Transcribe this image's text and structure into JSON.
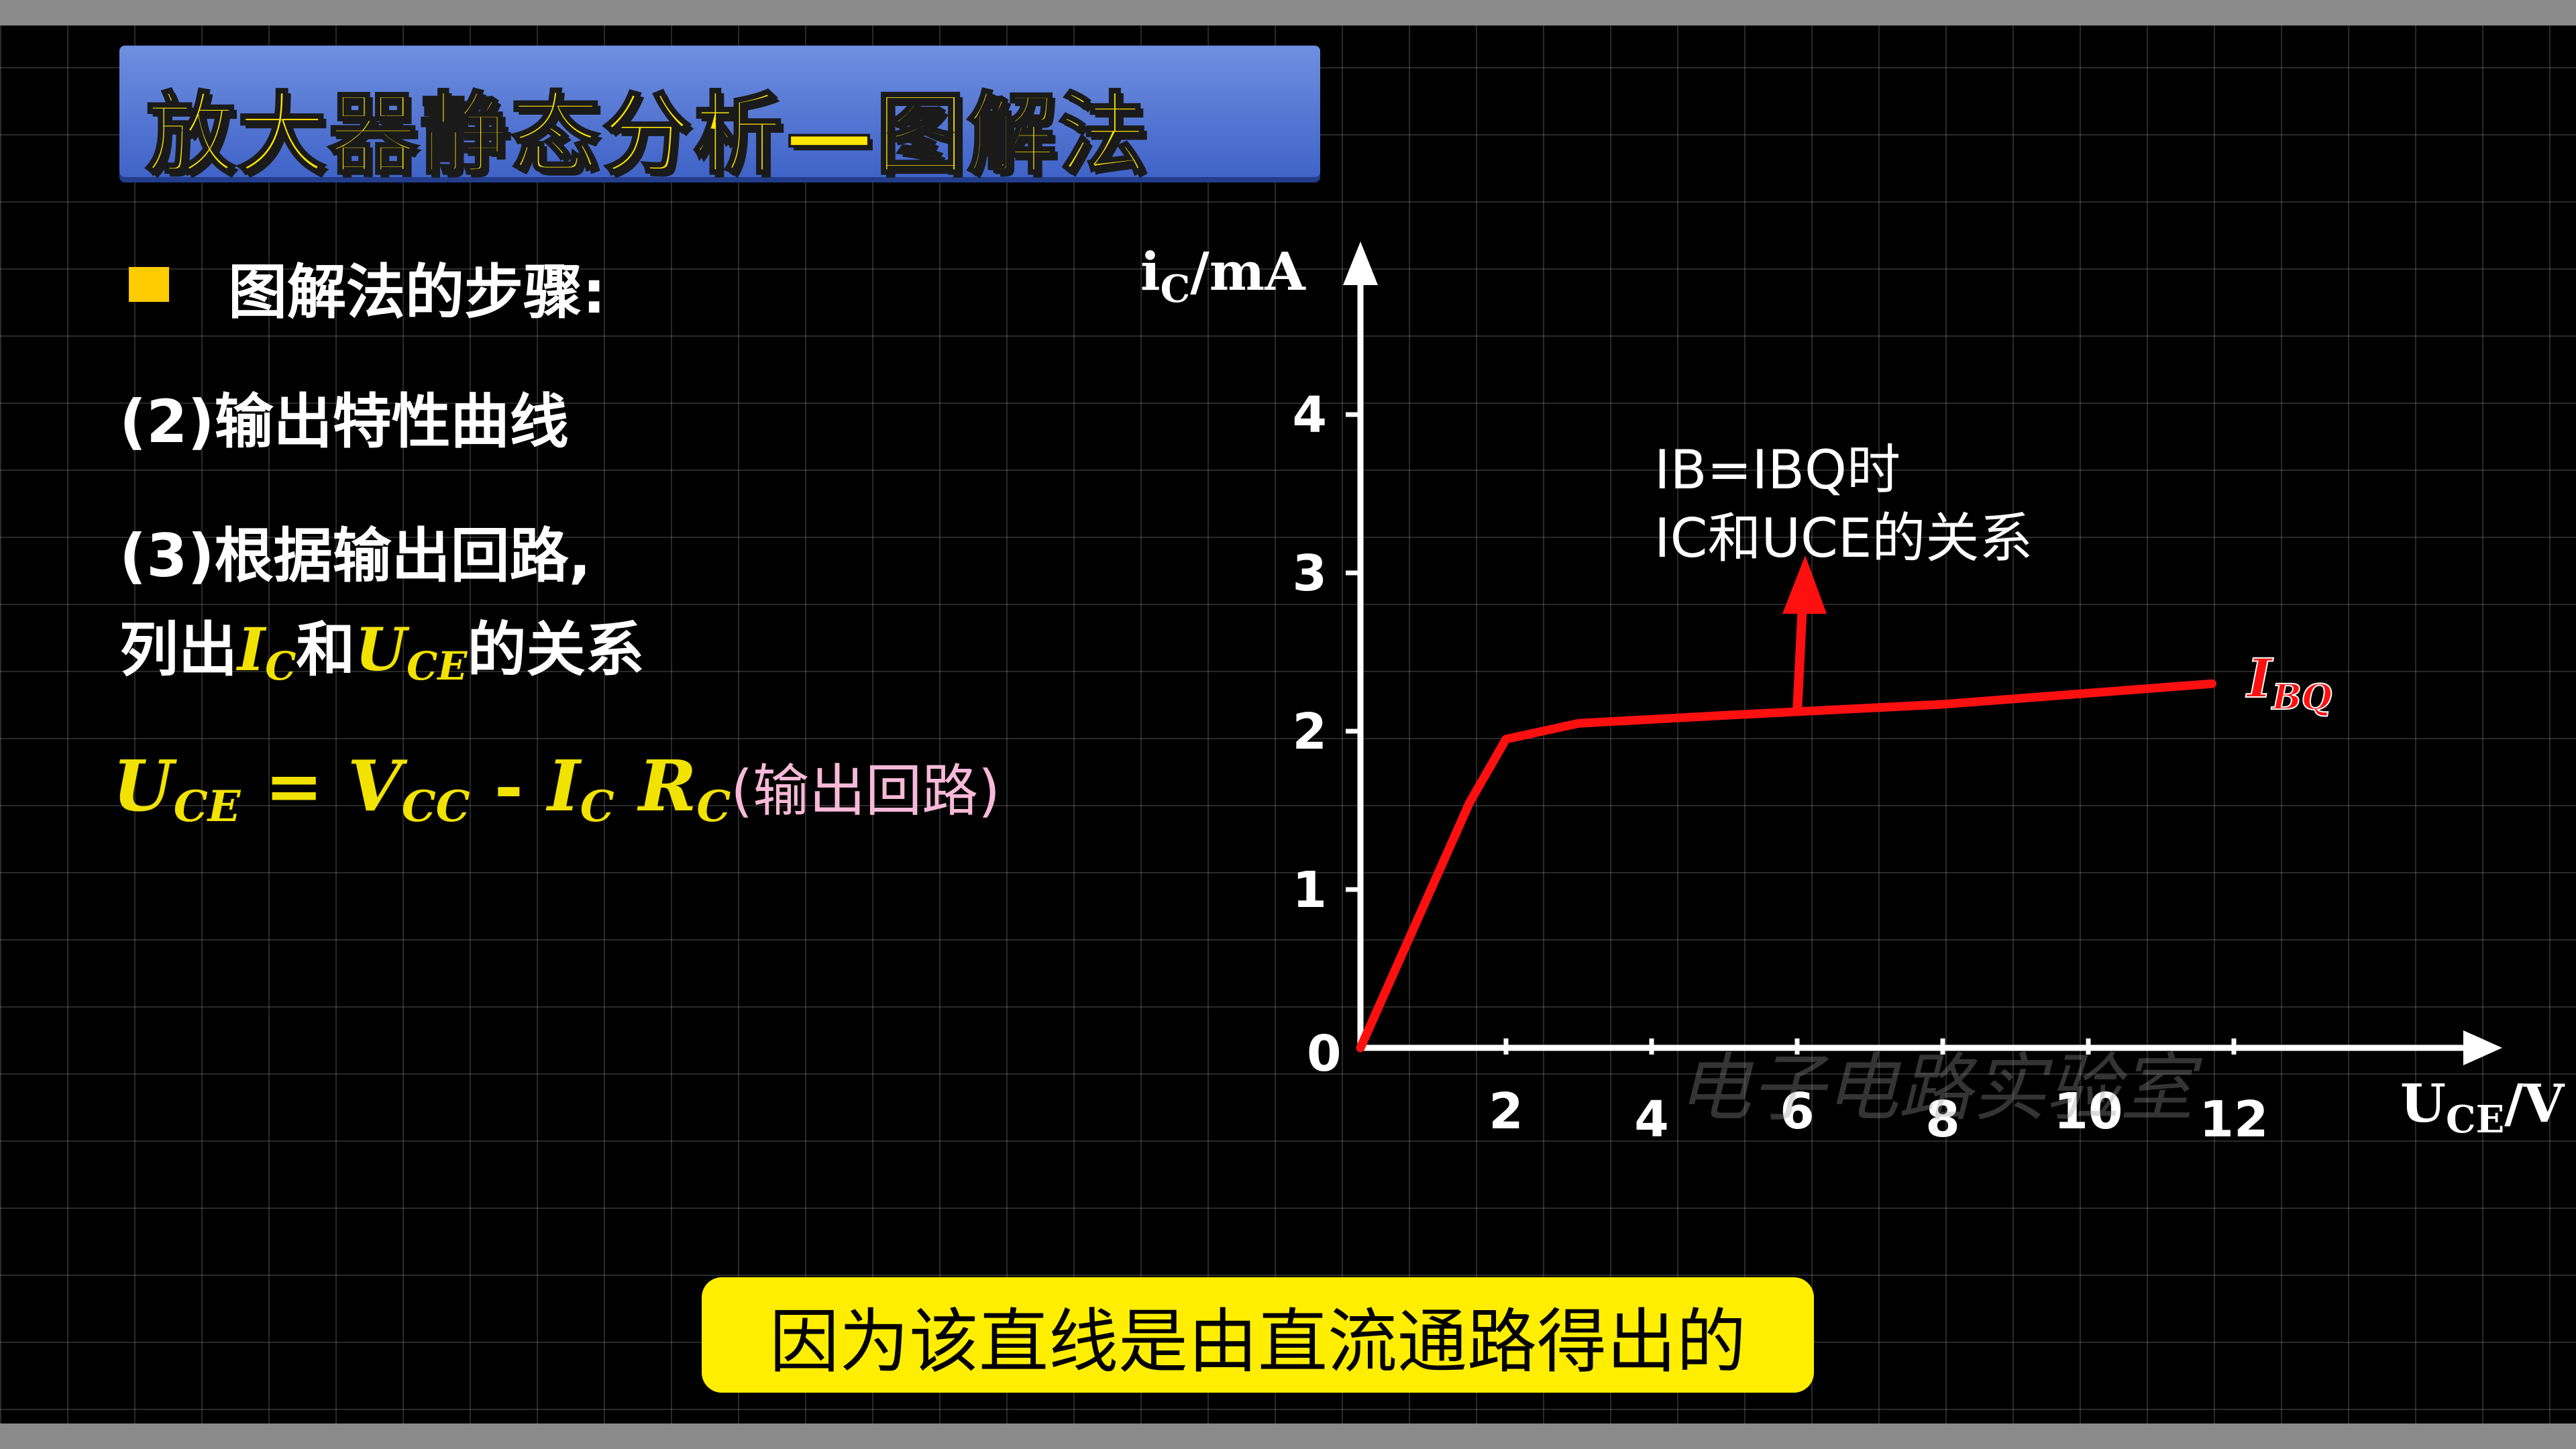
{
  "title": "放大器静态分析—图解法",
  "steps": {
    "heading": "图解法的步骤:",
    "step2": "(2)输出特性曲线",
    "step3_line1": "(3)根据输出回路,",
    "step3_line2_pre": "列出",
    "ic_var": "I",
    "ic_sub": "C",
    "and_word": "和",
    "uce_var": "U",
    "uce_sub": "CE",
    "step3_line2_post": "的关系"
  },
  "equation": {
    "u": "U",
    "u_sub": "CE",
    "equals": " = ",
    "v": "V",
    "v_sub": "CC",
    "minus": " - ",
    "i": "I",
    "i_sub": "C",
    "r": "R",
    "r_sub": "C",
    "note": "(输出回路)"
  },
  "chart_data": {
    "type": "line",
    "ylabel_main": "i",
    "ylabel_sub": "C",
    "ylabel_unit": "/mA",
    "xlabel_main": "U",
    "xlabel_sub": "CE",
    "xlabel_unit": "/V",
    "origin_label": "0",
    "x_ticks": [
      "2",
      "4",
      "6",
      "8",
      "10",
      "12"
    ],
    "y_ticks": [
      "1",
      "2",
      "3",
      "4"
    ],
    "series": [
      {
        "name": "IBQ",
        "name_main": "I",
        "name_sub": "BQ",
        "color": "#ff1010",
        "points": [
          [
            0,
            0
          ],
          [
            1.5,
            1.55
          ],
          [
            2.0,
            1.95
          ],
          [
            3.0,
            2.05
          ],
          [
            5.0,
            2.1
          ],
          [
            8.0,
            2.17
          ],
          [
            11.7,
            2.3
          ]
        ]
      }
    ],
    "annotation_line1": "IB=IBQ时",
    "annotation_line2": "IC和UCE的关系",
    "watermark": "电子电路实验室"
  },
  "subtitle": "因为该直线是由直流通路得出的",
  "colors": {
    "title_fill": "#ffe600",
    "title_bar": "#4a6ed0",
    "accent_yellow": "#f2e200",
    "curve_red": "#ff1010",
    "note_pink": "#f7b9d7",
    "subtitle_bg": "#ffee00"
  }
}
